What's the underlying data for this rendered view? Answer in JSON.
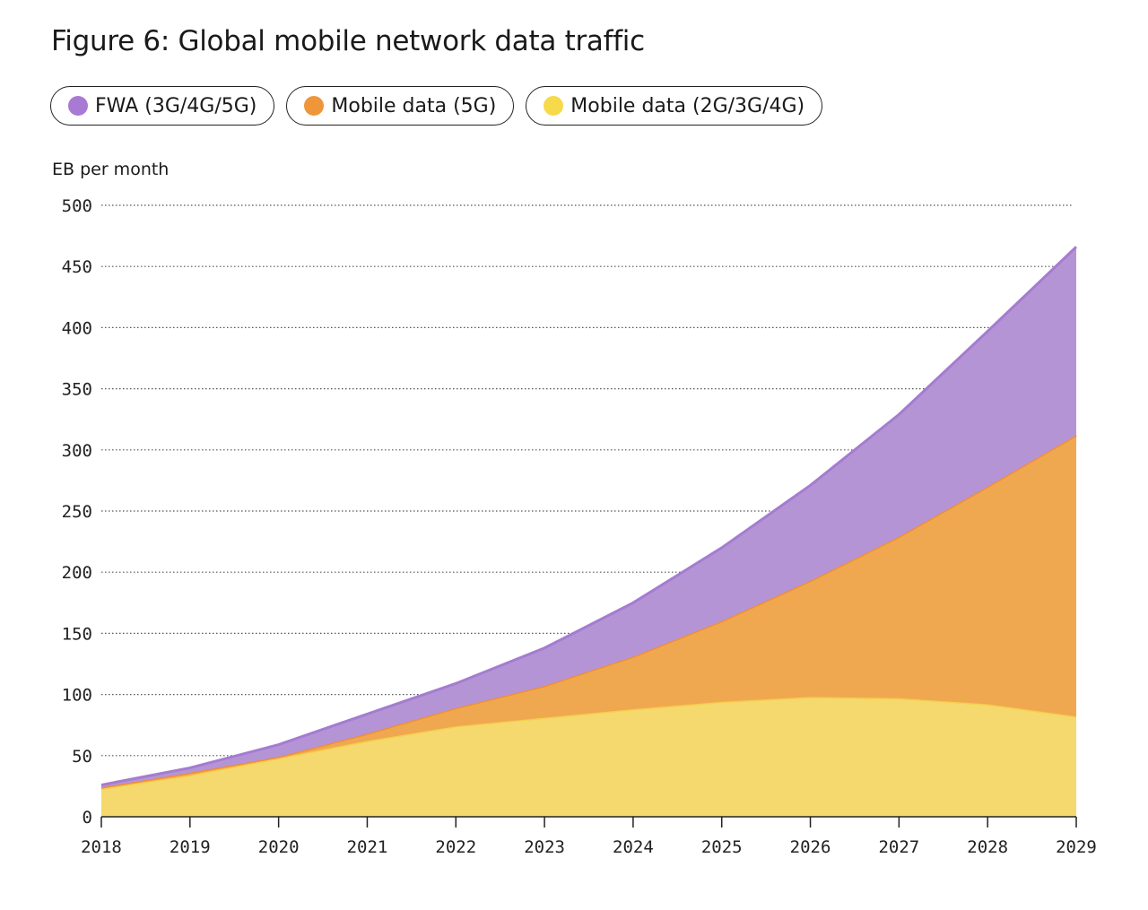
{
  "title": "Figure 6: Global mobile network data traffic",
  "legend": [
    {
      "label": "FWA (3G/4G/5G)",
      "color": "#a87ad4"
    },
    {
      "label": "Mobile data (5G)",
      "color": "#f0963a"
    },
    {
      "label": "Mobile data (2G/3G/4G)",
      "color": "#f7d94c"
    }
  ],
  "chart_data": {
    "type": "area",
    "stacked": true,
    "title": "Figure 6: Global mobile network data traffic",
    "ylabel": "EB per month",
    "xlabel": "",
    "x": [
      "2018",
      "2019",
      "2020",
      "2021",
      "2022",
      "2023",
      "2024",
      "2025",
      "2026",
      "2027",
      "2028",
      "2029"
    ],
    "ylim": [
      0,
      500
    ],
    "yticks": [
      "0",
      "50",
      "100",
      "150",
      "200",
      "250",
      "300",
      "350",
      "400",
      "450",
      "500"
    ],
    "grid": true,
    "legend_position": "top",
    "series": [
      {
        "name": "Mobile data (2G/3G/4G)",
        "color": "#f5d96e",
        "line": "#f3cf4e",
        "values": [
          23,
          34,
          48,
          62,
          74,
          81,
          88,
          94,
          98,
          97,
          92,
          82
        ]
      },
      {
        "name": "Mobile data (5G)",
        "color": "#f0a850",
        "line": "#ef9030",
        "values": [
          1,
          2,
          1,
          6,
          15,
          26,
          43,
          66,
          95,
          132,
          178,
          230
        ]
      },
      {
        "name": "FWA (3G/4G/5G)",
        "color": "#b594d6",
        "line": "#a47cd0",
        "values": [
          2,
          4,
          10,
          16,
          20,
          31,
          44,
          60,
          78,
          100,
          127,
          154
        ]
      }
    ]
  }
}
